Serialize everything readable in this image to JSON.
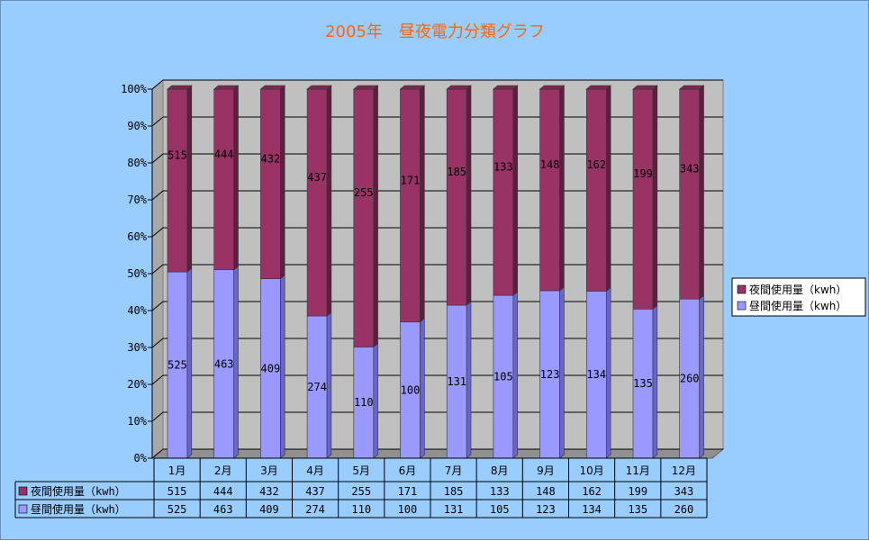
{
  "chart_data": {
    "type": "bar",
    "stacked": "100%",
    "title": "2005年　昼夜電力分類グラフ",
    "categories": [
      "1月",
      "2月",
      "3月",
      "4月",
      "5月",
      "6月",
      "7月",
      "8月",
      "9月",
      "10月",
      "11月",
      "12月"
    ],
    "series": [
      {
        "name": "夜間使用量（kwh）",
        "color": "#993366",
        "values": [
          515,
          444,
          432,
          437,
          255,
          171,
          185,
          133,
          148,
          162,
          199,
          343
        ]
      },
      {
        "name": "昼間使用量（kwh）",
        "color": "#9999ff",
        "values": [
          525,
          463,
          409,
          274,
          110,
          100,
          131,
          105,
          123,
          134,
          135,
          260
        ]
      }
    ],
    "y_ticks": [
      "0%",
      "10%",
      "20%",
      "30%",
      "40%",
      "50%",
      "60%",
      "70%",
      "80%",
      "90%",
      "100%"
    ],
    "ylim": [
      0,
      100
    ],
    "legend_position": "right",
    "grid": true,
    "data_table": true,
    "colors": {
      "background": "#99ccff",
      "plot_wall": "#c0c0c0",
      "title": "#ff6600"
    }
  }
}
